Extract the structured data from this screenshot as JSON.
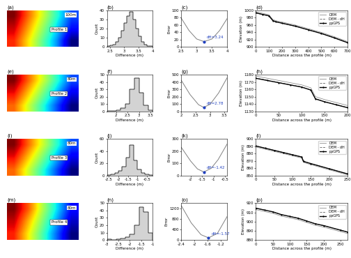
{
  "chart_data": [
    {
      "type": "map",
      "title": "(a)",
      "tick_labels": false,
      "cells": [
        [
          990,
          975,
          960,
          945,
          930
        ],
        [
          985,
          970,
          955,
          940,
          925
        ],
        [
          980,
          965,
          950,
          935,
          915
        ]
      ],
      "labels": [
        "Profile 1"
      ],
      "scale": "100m"
    },
    {
      "type": "histogram",
      "title": "(b)",
      "x_label": "Difference (m)",
      "y_label": "Count",
      "color": "#d3d3d3",
      "bins": [
        2.4,
        2.5,
        2.6,
        2.7,
        2.8,
        2.9,
        3.0,
        3.1,
        3.2,
        3.3,
        3.4,
        3.5,
        3.6,
        3.7,
        3.8,
        3.9,
        4.0
      ],
      "counts": [
        1,
        2,
        3,
        6,
        10,
        18,
        26,
        34,
        38,
        30,
        20,
        12,
        6,
        3,
        1,
        1
      ],
      "xlim": [
        2.4,
        4.0
      ],
      "xticks": [
        2.5,
        3,
        3.5,
        4
      ],
      "ylim": [
        0,
        40
      ],
      "yticks": [
        0,
        10,
        20,
        30,
        40
      ]
    },
    {
      "type": "line",
      "title": "(c)",
      "y_label": "Error",
      "color": "#808080",
      "x": [
        2.5,
        2.75,
        3.0,
        3.24,
        3.5,
        3.75,
        4.0
      ],
      "values": [
        78,
        45,
        22,
        15,
        22,
        45,
        78
      ],
      "min": {
        "x": 3.24,
        "y": 15,
        "label": "dH=3.24"
      },
      "xlim": [
        2.5,
        4.0
      ],
      "xticks": [
        2.5,
        3,
        3.5,
        4
      ],
      "ylim": [
        0,
        100
      ],
      "yticks": [
        0,
        20,
        40,
        60,
        80,
        100
      ]
    },
    {
      "type": "line",
      "title": "(d)",
      "x_label": "Distance across the profile (m)",
      "y_label": "Elevation (m)",
      "legend": "upper right",
      "x": [
        0,
        50,
        100,
        130,
        150,
        200,
        300,
        400,
        500,
        600,
        700
      ],
      "series": [
        {
          "name": "DEM",
          "color": "#909090",
          "line_style": "solid",
          "values": [
            996,
            992,
            988,
            975,
            972,
            968,
            960,
            950,
            940,
            928,
            915
          ]
        },
        {
          "name": "DEM - dH",
          "color": "#606060",
          "line_style": "dashed",
          "values": [
            992.76,
            988.76,
            984.76,
            971.76,
            968.76,
            964.76,
            956.76,
            946.76,
            936.76,
            924.76,
            911.76
          ]
        },
        {
          "name": "ppGPS",
          "color": "#000000",
          "line_style": "solid",
          "marker": ".",
          "values": [
            993,
            989,
            985,
            972,
            969,
            965,
            957,
            947,
            937,
            925,
            912
          ]
        }
      ],
      "xlim": [
        0,
        700
      ],
      "xticks": [
        0,
        100,
        200,
        300,
        400,
        500,
        600,
        700
      ],
      "ylim": [
        900,
        1000
      ],
      "yticks": [
        900,
        920,
        940,
        960,
        980,
        1000
      ]
    },
    {
      "type": "map",
      "title": "(e)",
      "tick_labels": false,
      "cells": [
        [
          1180,
          1170,
          1160,
          1150,
          1140
        ],
        [
          1175,
          1165,
          1155,
          1145,
          1135
        ],
        [
          1170,
          1160,
          1150,
          1140,
          1130
        ]
      ],
      "labels": [
        "Profile 2"
      ],
      "scale": "80m"
    },
    {
      "type": "histogram",
      "title": "(f)",
      "x_label": "Difference (m)",
      "y_label": "Count",
      "color": "#d3d3d3",
      "bins": [
        1.6,
        1.8,
        2.0,
        2.2,
        2.4,
        2.6,
        2.8,
        3.0,
        3.2,
        3.4,
        3.6
      ],
      "counts": [
        1,
        1,
        2,
        4,
        10,
        30,
        45,
        25,
        8,
        2
      ],
      "xlim": [
        1.6,
        3.6
      ],
      "xticks": [
        2,
        2.5,
        3,
        3.5
      ],
      "ylim": [
        0,
        50
      ],
      "yticks": [
        0,
        10,
        20,
        30,
        40,
        50
      ]
    },
    {
      "type": "line",
      "title": "(g)",
      "y_label": "Error",
      "color": "#808080",
      "x": [
        2.0,
        2.3,
        2.6,
        2.78,
        3.0,
        3.3,
        3.6
      ],
      "values": [
        420,
        230,
        90,
        55,
        95,
        250,
        460
      ],
      "min": {
        "x": 2.78,
        "y": 55,
        "label": "dH=2.78"
      },
      "xlim": [
        2.0,
        3.6
      ],
      "xticks": [
        2,
        2.5,
        3,
        3.5
      ],
      "ylim": [
        0,
        500
      ],
      "yticks": [
        0,
        100,
        200,
        300,
        400,
        500
      ]
    },
    {
      "type": "line",
      "title": "(h)",
      "x_label": "Distance across the profile (m)",
      "y_label": "Elevation (m)",
      "legend": "upper right",
      "x": [
        0,
        25,
        50,
        75,
        100,
        120,
        130,
        150,
        175,
        200
      ],
      "series": [
        {
          "name": "DEM",
          "color": "#909090",
          "line_style": "solid",
          "values": [
            1178,
            1175,
            1172,
            1169,
            1166,
            1162,
            1150,
            1146,
            1142,
            1138
          ]
        },
        {
          "name": "DEM - dH",
          "color": "#606060",
          "line_style": "dashed",
          "values": [
            1175.22,
            1172.22,
            1169.22,
            1166.22,
            1163.22,
            1159.22,
            1147.22,
            1143.22,
            1139.22,
            1135.22
          ]
        },
        {
          "name": "ppGPS",
          "color": "#000000",
          "line_style": "solid",
          "marker": ".",
          "values": [
            1175,
            1172,
            1169,
            1166,
            1163,
            1159,
            1147,
            1143,
            1139,
            1135
          ]
        }
      ],
      "xlim": [
        0,
        200
      ],
      "xticks": [
        0,
        50,
        100,
        150,
        200
      ],
      "ylim": [
        1130,
        1180
      ],
      "yticks": [
        1130,
        1140,
        1150,
        1160,
        1170,
        1180
      ]
    },
    {
      "type": "map",
      "title": "(i)",
      "tick_labels": false,
      "cells": [
        [
          890,
          882,
          874,
          866,
          858
        ],
        [
          886,
          878,
          870,
          862,
          854
        ],
        [
          882,
          874,
          866,
          858,
          850
        ]
      ],
      "labels": [
        "Profile 3"
      ],
      "scale": "80m"
    },
    {
      "type": "histogram",
      "title": "(j)",
      "x_label": "Difference (m)",
      "y_label": "Count",
      "color": "#d3d3d3",
      "bins": [
        -2.6,
        -2.4,
        -2.2,
        -2.0,
        -1.8,
        -1.6,
        -1.4,
        -1.2,
        -1.0,
        -0.8,
        -0.6,
        -0.4,
        -0.2
      ],
      "counts": [
        1,
        2,
        4,
        8,
        15,
        30,
        50,
        25,
        10,
        5,
        2,
        1
      ],
      "xlim": [
        -2.6,
        -0.2
      ],
      "xticks": [
        -2.5,
        -2,
        -1.5,
        -1,
        -0.5
      ],
      "ylim": [
        0,
        60
      ],
      "yticks": [
        0,
        20,
        40,
        60
      ]
    },
    {
      "type": "line",
      "title": "(k)",
      "y_label": "Error",
      "color": "#808080",
      "x": [
        -2.4,
        -2.0,
        -1.7,
        -1.42,
        -1.1,
        -0.8,
        -0.4
      ],
      "values": [
        230,
        120,
        55,
        30,
        60,
        130,
        260
      ],
      "min": {
        "x": -1.42,
        "y": 30,
        "label": "dH=-1.42"
      },
      "xlim": [
        -2.4,
        -0.4
      ],
      "xticks": [
        -2,
        -1.5,
        -1,
        -0.5
      ],
      "ylim": [
        0,
        300
      ],
      "yticks": [
        0,
        100,
        200,
        300
      ]
    },
    {
      "type": "line",
      "title": "(l)",
      "x_label": "Distance across the profile (m)",
      "y_label": "Elevation (m)",
      "legend": "upper right",
      "x": [
        0,
        25,
        50,
        75,
        100,
        125,
        130,
        150,
        200,
        250
      ],
      "series": [
        {
          "name": "DEM",
          "color": "#909090",
          "line_style": "solid",
          "values": [
            889,
            886,
            883,
            880,
            877,
            874,
            868,
            865,
            858,
            851
          ]
        },
        {
          "name": "DEM - dH",
          "color": "#606060",
          "line_style": "dashed",
          "values": [
            890.42,
            887.42,
            884.42,
            881.42,
            878.42,
            875.42,
            869.42,
            866.42,
            859.42,
            852.42
          ]
        },
        {
          "name": "ppGPS",
          "color": "#000000",
          "line_style": "solid",
          "marker": ".",
          "values": [
            890.4,
            887.4,
            884.4,
            881.4,
            878.4,
            875.4,
            869.4,
            866.4,
            859.4,
            852.4
          ]
        }
      ],
      "xlim": [
        0,
        250
      ],
      "xticks": [
        0,
        50,
        100,
        150,
        200,
        250
      ],
      "ylim": [
        850,
        900
      ],
      "yticks": [
        850,
        860,
        870,
        880,
        890,
        900
      ]
    },
    {
      "type": "map",
      "title": "(m)",
      "tick_labels": false,
      "cells": [
        [
          916,
          910,
          902,
          895,
          888
        ],
        [
          914,
          907,
          900,
          893,
          886
        ],
        [
          912,
          905,
          898,
          891,
          884
        ]
      ],
      "labels": [
        "Profile 4"
      ],
      "scale": "80m"
    },
    {
      "type": "histogram",
      "title": "(n)",
      "x_label": "Difference (m)",
      "y_label": "Count",
      "color": "#d3d3d3",
      "bins": [
        -3.0,
        -2.8,
        -2.6,
        -2.4,
        -2.2,
        -2.0,
        -1.8,
        -1.6,
        -1.4,
        -1.2,
        -1.0
      ],
      "counts": [
        1,
        0,
        1,
        2,
        4,
        8,
        20,
        45,
        38,
        10
      ],
      "xlim": [
        -3.0,
        -1.0
      ],
      "xticks": [
        -3,
        -2.5,
        -2,
        -1.5,
        -1
      ],
      "ylim": [
        0,
        50
      ],
      "yticks": [
        0,
        10,
        20,
        30,
        40,
        50
      ]
    },
    {
      "type": "line",
      "title": "(o)",
      "y_label": "Error",
      "color": "#808080",
      "x": [
        -2.4,
        -2.1,
        -1.8,
        -1.57,
        -1.3,
        -1.0
      ],
      "values": [
        1300,
        650,
        200,
        80,
        250,
        900
      ],
      "min": {
        "x": -1.57,
        "y": 80,
        "label": "dH=-1.57"
      },
      "xlim": [
        -2.4,
        -1.0
      ],
      "xticks": [
        -2.4,
        -2,
        -1.6,
        -1.2
      ],
      "ylim": [
        0,
        1400
      ],
      "yticks": [
        0,
        400,
        800,
        1200
      ]
    },
    {
      "type": "line",
      "title": "(p)",
      "x_label": "Distance across the profile (m)",
      "y_label": "Elevation (m)",
      "legend": "upper right",
      "x": [
        0,
        25,
        50,
        75,
        100,
        125,
        150,
        175,
        200,
        250,
        270
      ],
      "series": [
        {
          "name": "DEM",
          "color": "#909090",
          "line_style": "solid",
          "values": [
            913,
            911,
            909,
            906,
            904,
            902,
            899,
            896,
            894,
            889,
            887
          ]
        },
        {
          "name": "DEM - dH",
          "color": "#606060",
          "line_style": "dashed",
          "values": [
            914.57,
            912.57,
            910.57,
            907.57,
            905.57,
            903.57,
            900.57,
            897.57,
            895.57,
            890.57,
            888.57
          ]
        },
        {
          "name": "ppGPS",
          "color": "#000000",
          "line_style": "solid",
          "marker": ".",
          "values": [
            914.6,
            912.6,
            910.6,
            907.6,
            905.6,
            903.6,
            900.6,
            897.6,
            895.6,
            890.6,
            888.6
          ]
        }
      ],
      "xlim": [
        0,
        270
      ],
      "xticks": [
        0,
        50,
        100,
        150,
        200,
        250
      ],
      "ylim": [
        880,
        920
      ],
      "yticks": [
        880,
        890,
        900,
        910,
        920
      ]
    }
  ]
}
